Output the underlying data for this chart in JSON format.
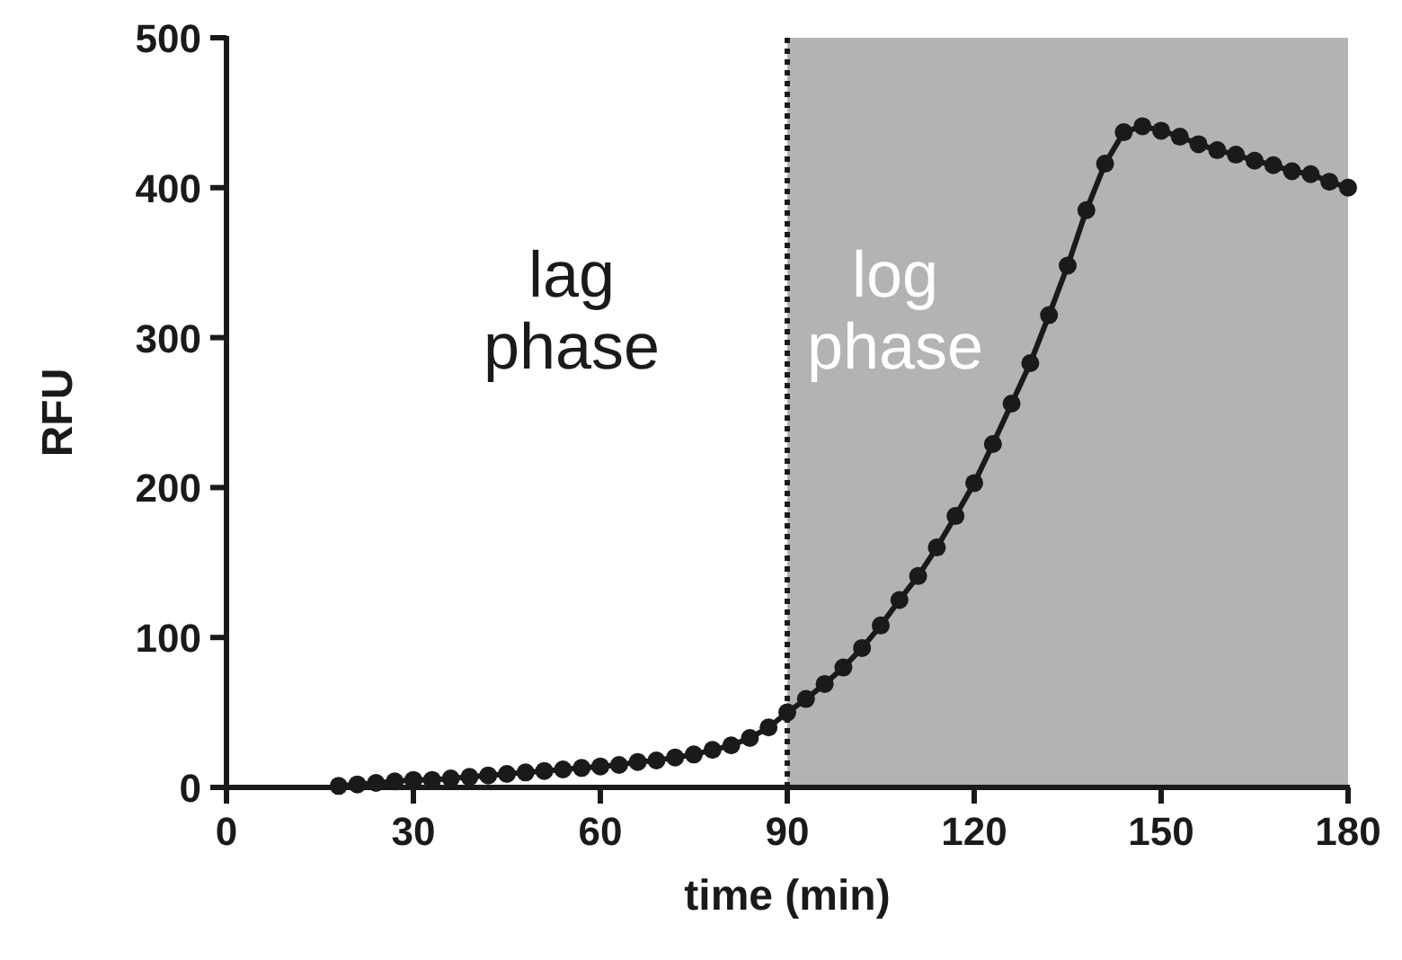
{
  "chart_data": {
    "type": "line",
    "xlabel": "time (min)",
    "ylabel": "RFU",
    "x": [
      18,
      21,
      24,
      27,
      30,
      33,
      36,
      39,
      42,
      45,
      48,
      51,
      54,
      57,
      60,
      63,
      66,
      69,
      72,
      75,
      78,
      81,
      84,
      87,
      90,
      93,
      96,
      99,
      102,
      105,
      108,
      111,
      114,
      117,
      120,
      123,
      126,
      129,
      132,
      135,
      138,
      141,
      144,
      147,
      150,
      153,
      156,
      159,
      162,
      165,
      168,
      171,
      174,
      177,
      180
    ],
    "series": [
      {
        "color": "#1a1a1a",
        "values": [
          1,
          2,
          3,
          4,
          5,
          5,
          6,
          7,
          8,
          9,
          10,
          11,
          12,
          13,
          14,
          15,
          17,
          18,
          20,
          22,
          25,
          28,
          33,
          40,
          50,
          59,
          69,
          80,
          93,
          108,
          125,
          141,
          160,
          181,
          203,
          229,
          256,
          283,
          315,
          348,
          385,
          416,
          437,
          441,
          438,
          434,
          429,
          425,
          422,
          418,
          415,
          411,
          409,
          404,
          400
        ]
      }
    ],
    "xlim": [
      0,
      180
    ],
    "ylim": [
      0,
      500
    ],
    "xticks": [
      0,
      30,
      60,
      90,
      120,
      150,
      180
    ],
    "yticks": [
      0,
      100,
      200,
      300,
      400,
      500
    ],
    "marker": "circle",
    "line_style": "solid",
    "bands": [
      {
        "axis": "x",
        "from": 90,
        "to": 180,
        "label": "log phase",
        "color": "#b3b3b3"
      }
    ],
    "ref_lines": [
      {
        "axis": "x",
        "value": 90,
        "line_style": "dotted",
        "color": "#1a1a1a"
      }
    ],
    "annotations": [
      "lag phase"
    ]
  }
}
